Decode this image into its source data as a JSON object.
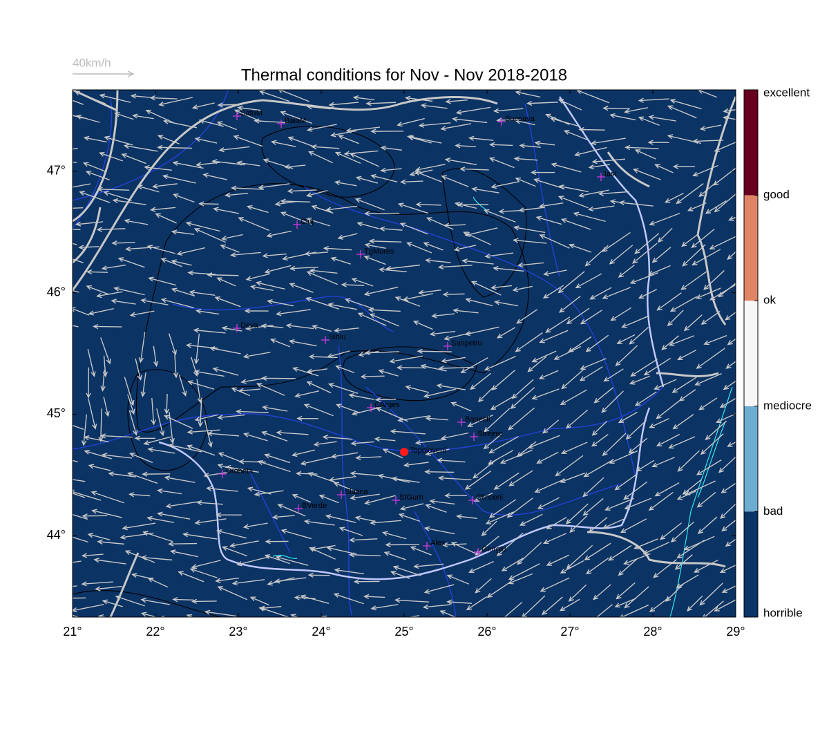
{
  "title": "Thermal conditions for Nov - Nov  2018-2018",
  "speed_key": "40km/h",
  "map": {
    "xlim": [
      21,
      29
    ],
    "ylim": [
      43.33,
      47.67
    ],
    "xticks": [
      {
        "value": 21,
        "label": "21°"
      },
      {
        "value": 22,
        "label": "22°"
      },
      {
        "value": 23,
        "label": "23°"
      },
      {
        "value": 24,
        "label": "24°"
      },
      {
        "value": 25,
        "label": "25°"
      },
      {
        "value": 26,
        "label": "26°"
      },
      {
        "value": 27,
        "label": "27°"
      },
      {
        "value": 28,
        "label": "28°"
      },
      {
        "value": 29,
        "label": "29°"
      }
    ],
    "yticks": [
      {
        "value": 44,
        "label": "44°"
      },
      {
        "value": 45,
        "label": "45°"
      },
      {
        "value": 46,
        "label": "46°"
      },
      {
        "value": 47,
        "label": "47°"
      }
    ]
  },
  "places": [
    "SatuM",
    "BaiaM",
    "Suceava",
    "Iasi",
    "Cluj",
    "TgMures",
    "Deva",
    "Sibiu",
    "Sanpetru",
    "CArges",
    "Banesti",
    "Strejnic",
    "Drobeta",
    "Slatina",
    "StGurn",
    "BVerde",
    "Clinceni",
    "Alex",
    "Giurgiu"
  ],
  "highlight": "Topoloveni",
  "colorbar": {
    "labels": [
      "excellent",
      "good",
      "ok",
      "mediocre",
      "bad",
      "horrible"
    ],
    "colors": [
      "#67001f",
      "#e08466",
      "#f7f7f7",
      "#6dadd2",
      "#0b3467"
    ]
  }
}
